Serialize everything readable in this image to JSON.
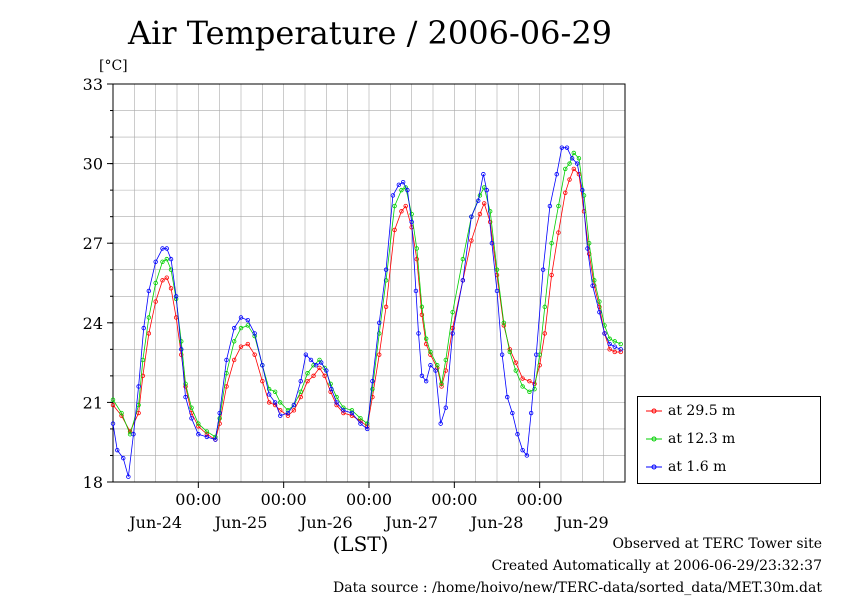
{
  "title": "Air Temperature / 2006-06-29",
  "footer": {
    "observed": "Observed at TERC Tower site",
    "created": "Created Automatically at 2006-06-29/23:32:37",
    "source": "Data source : /home/hoivo/new/TERC-data/sorted_data/MET.30m.dat"
  },
  "chart_data": {
    "type": "line",
    "title": "Air Temperature / 2006-06-29",
    "ylabel": "[°C]",
    "xlabel": "(LST)",
    "ylim": [
      18,
      33
    ],
    "y_ticks": [
      18,
      21,
      24,
      27,
      30,
      33
    ],
    "xlim_days": [
      23.0,
      29.0
    ],
    "x_tick_labels": [
      "00:00",
      "00:00",
      "00:00",
      "00:00",
      "00:00"
    ],
    "date_labels": [
      "Jun-24",
      "Jun-25",
      "Jun-26",
      "Jun-27",
      "Jun-28",
      "Jun-29"
    ],
    "grid": true,
    "legend_position": "bottom-right, outside plot",
    "series": [
      {
        "name": "at 29.5 m",
        "color": "#ff0000",
        "points": [
          [
            23.0,
            20.9
          ],
          [
            23.1,
            20.5
          ],
          [
            23.2,
            19.9
          ],
          [
            23.3,
            20.6
          ],
          [
            23.35,
            22.0
          ],
          [
            23.42,
            23.6
          ],
          [
            23.5,
            24.8
          ],
          [
            23.58,
            25.6
          ],
          [
            23.63,
            25.7
          ],
          [
            23.68,
            25.3
          ],
          [
            23.74,
            24.2
          ],
          [
            23.8,
            22.8
          ],
          [
            23.85,
            21.6
          ],
          [
            23.92,
            20.6
          ],
          [
            24.0,
            20.1
          ],
          [
            24.1,
            19.8
          ],
          [
            24.2,
            19.6
          ],
          [
            24.25,
            20.2
          ],
          [
            24.33,
            21.6
          ],
          [
            24.42,
            22.6
          ],
          [
            24.5,
            23.1
          ],
          [
            24.58,
            23.2
          ],
          [
            24.66,
            22.8
          ],
          [
            24.75,
            21.8
          ],
          [
            24.83,
            21.0
          ],
          [
            24.9,
            20.9
          ],
          [
            24.96,
            20.7
          ],
          [
            25.05,
            20.5
          ],
          [
            25.12,
            20.7
          ],
          [
            25.2,
            21.2
          ],
          [
            25.28,
            21.8
          ],
          [
            25.35,
            22.0
          ],
          [
            25.42,
            22.3
          ],
          [
            25.48,
            22.0
          ],
          [
            25.55,
            21.4
          ],
          [
            25.62,
            20.9
          ],
          [
            25.7,
            20.6
          ],
          [
            25.8,
            20.5
          ],
          [
            25.9,
            20.3
          ],
          [
            25.98,
            20.1
          ],
          [
            26.04,
            21.2
          ],
          [
            26.12,
            22.8
          ],
          [
            26.2,
            24.6
          ],
          [
            26.3,
            27.5
          ],
          [
            26.38,
            28.2
          ],
          [
            26.43,
            28.4
          ],
          [
            26.5,
            27.6
          ],
          [
            26.56,
            26.4
          ],
          [
            26.62,
            24.3
          ],
          [
            26.67,
            23.2
          ],
          [
            26.72,
            22.8
          ],
          [
            26.8,
            22.3
          ],
          [
            26.85,
            21.6
          ],
          [
            26.9,
            22.2
          ],
          [
            26.98,
            23.8
          ],
          [
            27.1,
            25.6
          ],
          [
            27.2,
            27.1
          ],
          [
            27.3,
            28.1
          ],
          [
            27.35,
            28.5
          ],
          [
            27.42,
            27.8
          ],
          [
            27.5,
            25.8
          ],
          [
            27.58,
            23.9
          ],
          [
            27.65,
            23.0
          ],
          [
            27.72,
            22.5
          ],
          [
            27.8,
            21.9
          ],
          [
            27.88,
            21.8
          ],
          [
            27.94,
            21.7
          ],
          [
            28.0,
            22.4
          ],
          [
            28.06,
            23.6
          ],
          [
            28.14,
            25.8
          ],
          [
            28.22,
            27.4
          ],
          [
            28.3,
            28.9
          ],
          [
            28.35,
            29.4
          ],
          [
            28.4,
            29.8
          ],
          [
            28.46,
            29.6
          ],
          [
            28.52,
            28.2
          ],
          [
            28.58,
            26.6
          ],
          [
            28.64,
            25.4
          ],
          [
            28.7,
            24.6
          ],
          [
            28.76,
            23.6
          ],
          [
            28.82,
            23.0
          ],
          [
            28.88,
            22.9
          ],
          [
            28.95,
            22.9
          ]
        ]
      },
      {
        "name": "at 12.3 m",
        "color": "#00d000",
        "points": [
          [
            23.0,
            21.1
          ],
          [
            23.1,
            20.6
          ],
          [
            23.2,
            19.8
          ],
          [
            23.3,
            20.9
          ],
          [
            23.35,
            22.6
          ],
          [
            23.42,
            24.2
          ],
          [
            23.5,
            25.5
          ],
          [
            23.58,
            26.3
          ],
          [
            23.63,
            26.4
          ],
          [
            23.68,
            26.0
          ],
          [
            23.74,
            24.9
          ],
          [
            23.8,
            23.3
          ],
          [
            23.85,
            21.7
          ],
          [
            23.92,
            20.8
          ],
          [
            24.0,
            20.2
          ],
          [
            24.1,
            19.9
          ],
          [
            24.2,
            19.7
          ],
          [
            24.25,
            20.4
          ],
          [
            24.33,
            22.1
          ],
          [
            24.42,
            23.3
          ],
          [
            24.5,
            23.8
          ],
          [
            24.58,
            23.9
          ],
          [
            24.66,
            23.5
          ],
          [
            24.75,
            22.4
          ],
          [
            24.83,
            21.5
          ],
          [
            24.9,
            21.4
          ],
          [
            24.96,
            21.0
          ],
          [
            25.05,
            20.7
          ],
          [
            25.12,
            20.9
          ],
          [
            25.2,
            21.4
          ],
          [
            25.28,
            22.1
          ],
          [
            25.35,
            22.4
          ],
          [
            25.42,
            22.6
          ],
          [
            25.48,
            22.3
          ],
          [
            25.55,
            21.7
          ],
          [
            25.62,
            21.2
          ],
          [
            25.7,
            20.8
          ],
          [
            25.8,
            20.7
          ],
          [
            25.9,
            20.4
          ],
          [
            25.98,
            20.2
          ],
          [
            26.04,
            21.5
          ],
          [
            26.12,
            23.6
          ],
          [
            26.2,
            25.6
          ],
          [
            26.3,
            28.4
          ],
          [
            26.38,
            29.0
          ],
          [
            26.43,
            29.1
          ],
          [
            26.5,
            28.1
          ],
          [
            26.56,
            26.8
          ],
          [
            26.62,
            24.6
          ],
          [
            26.67,
            23.4
          ],
          [
            26.72,
            22.9
          ],
          [
            26.8,
            22.4
          ],
          [
            26.85,
            21.7
          ],
          [
            26.9,
            22.6
          ],
          [
            26.98,
            24.4
          ],
          [
            27.1,
            26.4
          ],
          [
            27.2,
            28.0
          ],
          [
            27.3,
            28.8
          ],
          [
            27.35,
            29.1
          ],
          [
            27.42,
            28.2
          ],
          [
            27.5,
            26.0
          ],
          [
            27.58,
            24.0
          ],
          [
            27.65,
            22.9
          ],
          [
            27.72,
            22.2
          ],
          [
            27.8,
            21.6
          ],
          [
            27.88,
            21.4
          ],
          [
            27.94,
            21.5
          ],
          [
            28.0,
            22.8
          ],
          [
            28.06,
            24.6
          ],
          [
            28.14,
            27.0
          ],
          [
            28.22,
            28.4
          ],
          [
            28.3,
            29.8
          ],
          [
            28.35,
            30.0
          ],
          [
            28.4,
            30.4
          ],
          [
            28.46,
            30.2
          ],
          [
            28.52,
            28.8
          ],
          [
            28.58,
            27.0
          ],
          [
            28.64,
            25.6
          ],
          [
            28.7,
            24.8
          ],
          [
            28.76,
            23.9
          ],
          [
            28.82,
            23.4
          ],
          [
            28.88,
            23.3
          ],
          [
            28.95,
            23.2
          ]
        ]
      },
      {
        "name": "at 1.6 m",
        "color": "#0000ff",
        "points": [
          [
            23.0,
            20.2
          ],
          [
            23.05,
            19.2
          ],
          [
            23.12,
            18.9
          ],
          [
            23.18,
            18.2
          ],
          [
            23.24,
            19.8
          ],
          [
            23.3,
            21.6
          ],
          [
            23.36,
            23.8
          ],
          [
            23.42,
            25.2
          ],
          [
            23.5,
            26.3
          ],
          [
            23.58,
            26.8
          ],
          [
            23.63,
            26.8
          ],
          [
            23.68,
            26.4
          ],
          [
            23.74,
            25.0
          ],
          [
            23.8,
            23.0
          ],
          [
            23.85,
            21.2
          ],
          [
            23.92,
            20.4
          ],
          [
            24.0,
            19.8
          ],
          [
            24.1,
            19.7
          ],
          [
            24.2,
            19.6
          ],
          [
            24.25,
            20.6
          ],
          [
            24.33,
            22.6
          ],
          [
            24.42,
            23.8
          ],
          [
            24.5,
            24.2
          ],
          [
            24.58,
            24.1
          ],
          [
            24.66,
            23.6
          ],
          [
            24.75,
            22.4
          ],
          [
            24.83,
            21.3
          ],
          [
            24.9,
            21.0
          ],
          [
            24.96,
            20.5
          ],
          [
            25.05,
            20.6
          ],
          [
            25.12,
            20.9
          ],
          [
            25.2,
            21.8
          ],
          [
            25.26,
            22.8
          ],
          [
            25.32,
            22.6
          ],
          [
            25.38,
            22.4
          ],
          [
            25.44,
            22.5
          ],
          [
            25.5,
            22.2
          ],
          [
            25.56,
            21.5
          ],
          [
            25.62,
            21.0
          ],
          [
            25.7,
            20.7
          ],
          [
            25.8,
            20.6
          ],
          [
            25.9,
            20.2
          ],
          [
            25.98,
            20.0
          ],
          [
            26.04,
            21.8
          ],
          [
            26.12,
            24.0
          ],
          [
            26.2,
            26.0
          ],
          [
            26.28,
            28.8
          ],
          [
            26.35,
            29.2
          ],
          [
            26.4,
            29.3
          ],
          [
            26.45,
            29.0
          ],
          [
            26.5,
            27.8
          ],
          [
            26.55,
            25.2
          ],
          [
            26.58,
            23.6
          ],
          [
            26.62,
            22.0
          ],
          [
            26.67,
            21.8
          ],
          [
            26.72,
            22.4
          ],
          [
            26.78,
            22.2
          ],
          [
            26.84,
            20.2
          ],
          [
            26.9,
            20.8
          ],
          [
            26.98,
            23.6
          ],
          [
            27.1,
            25.6
          ],
          [
            27.2,
            28.0
          ],
          [
            27.28,
            28.6
          ],
          [
            27.34,
            29.6
          ],
          [
            27.38,
            29.0
          ],
          [
            27.44,
            27.0
          ],
          [
            27.5,
            25.2
          ],
          [
            27.56,
            22.8
          ],
          [
            27.62,
            21.2
          ],
          [
            27.68,
            20.6
          ],
          [
            27.74,
            19.8
          ],
          [
            27.8,
            19.2
          ],
          [
            27.85,
            19.0
          ],
          [
            27.9,
            20.6
          ],
          [
            27.96,
            22.8
          ],
          [
            28.04,
            26.0
          ],
          [
            28.12,
            28.4
          ],
          [
            28.2,
            29.6
          ],
          [
            28.26,
            30.6
          ],
          [
            28.32,
            30.6
          ],
          [
            28.38,
            30.2
          ],
          [
            28.44,
            30.0
          ],
          [
            28.5,
            29.0
          ],
          [
            28.56,
            26.8
          ],
          [
            28.62,
            25.4
          ],
          [
            28.7,
            24.4
          ],
          [
            28.76,
            23.6
          ],
          [
            28.82,
            23.2
          ],
          [
            28.88,
            23.1
          ],
          [
            28.95,
            23.0
          ]
        ]
      }
    ]
  }
}
